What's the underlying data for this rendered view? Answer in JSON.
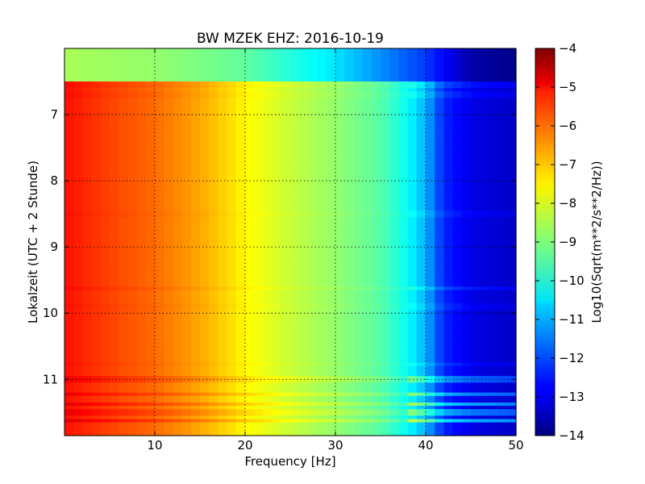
{
  "chart_data": {
    "type": "heatmap",
    "title": "BW MZEK EHZ: 2016-10-19",
    "xlabel": "Frequency [Hz]",
    "ylabel": "Lokalzeit (UTC + 2 Stunde)",
    "xlim": [
      0,
      50
    ],
    "ylim": [
      11.85,
      6.0
    ],
    "y_inverted": true,
    "grid": true,
    "x_ticks": [
      10,
      20,
      30,
      40,
      50
    ],
    "y_ticks": [
      7,
      8,
      9,
      10,
      11
    ],
    "x_tick_labels": [
      "10",
      "20",
      "30",
      "40",
      "50"
    ],
    "y_tick_labels": [
      "7",
      "8",
      "9",
      "10",
      "11"
    ],
    "colormap": "jet",
    "colorbar": {
      "label": "Log10(Sqrt(m**2/s**2/Hz))",
      "range": [
        -14,
        -4
      ],
      "ticks": [
        -4,
        -5,
        -6,
        -7,
        -8,
        -9,
        -10,
        -11,
        -12,
        -13,
        -14
      ],
      "tick_labels": [
        "−4",
        "−5",
        "−6",
        "−7",
        "−8",
        "−9",
        "−10",
        "−11",
        "−12",
        "−13",
        "−14"
      ]
    },
    "frequency_profile": {
      "frequency_hz": [
        0,
        2,
        5,
        10,
        15,
        20,
        25,
        30,
        35,
        38,
        40,
        42,
        45,
        50
      ],
      "log10_amplitude": [
        -5.4,
        -5.6,
        -5.9,
        -6.3,
        -6.9,
        -7.7,
        -8.3,
        -8.8,
        -9.4,
        -10.2,
        -11.0,
        -12.4,
        -13.0,
        -13.3
      ]
    },
    "pre_recording_interval": {
      "lokalzeit": [
        6.0,
        6.5
      ],
      "frequency_hz": [
        0,
        10,
        20,
        30,
        40,
        45,
        50
      ],
      "log10_amplitude": [
        -8.6,
        -8.8,
        -9.3,
        -10.5,
        -12.2,
        -13.6,
        -13.9
      ]
    },
    "bands": [
      {
        "lokalzeit": 6.55,
        "offset": 0.4
      },
      {
        "lokalzeit": 6.7,
        "offset": 0.3
      },
      {
        "lokalzeit": 8.5,
        "offset": 0.2
      },
      {
        "lokalzeit": 9.62,
        "offset": 0.5
      },
      {
        "lokalzeit": 9.9,
        "offset": 0.2
      },
      {
        "lokalzeit": 10.78,
        "offset": 0.3
      },
      {
        "lokalzeit": 11.0,
        "offset": 1.2
      },
      {
        "lokalzeit": 11.22,
        "offset": 1.5
      },
      {
        "lokalzeit": 11.38,
        "offset": 1.8
      },
      {
        "lokalzeit": 11.5,
        "offset": 1.4
      },
      {
        "lokalzeit": 11.62,
        "offset": 2.0
      }
    ]
  }
}
